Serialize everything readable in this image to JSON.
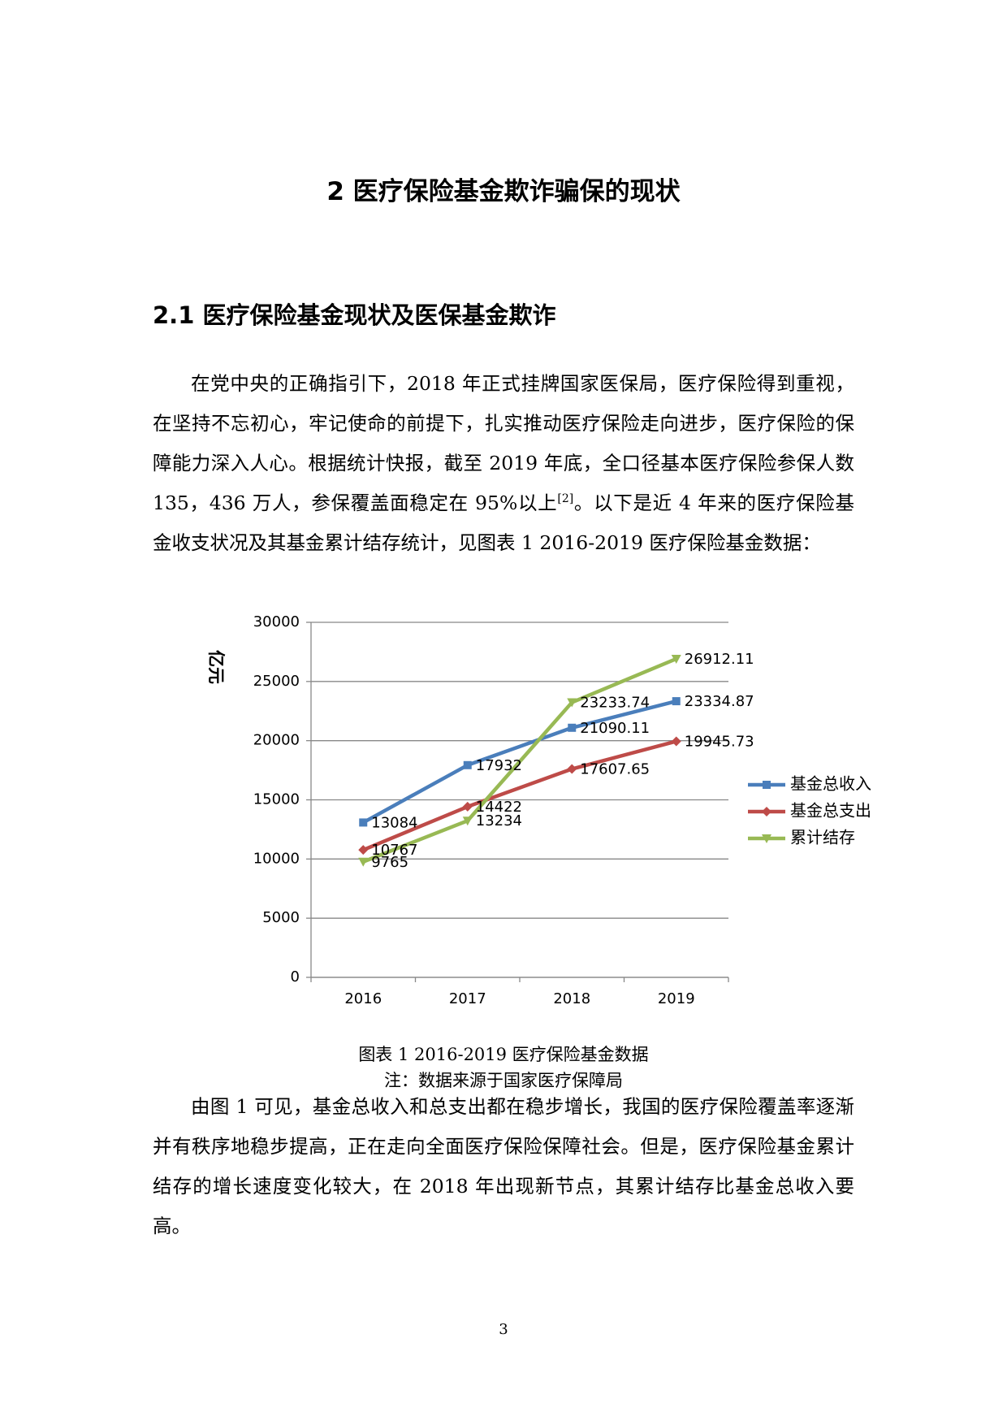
{
  "heading": "2 医疗保险基金欺诈骗保的现状",
  "section_heading": "2.1  医疗保险基金现状及医保基金欺诈",
  "paragraph_1": {
    "before": "在党中央的正确指引下，2018 年正式挂牌国家医保局，医疗保险得到重视，在坚持不忘初心，牢记使命的前提下，扎实推动医疗保险走向进步，医疗保险的保障能力深入人心。根据统计快报，截至 2019 年底，全口径基本医疗保险参保人数 135，436 万人，参保覆盖面稳定在 95%以上",
    "citation": "[2]",
    "after": "。以下是近 4 年来的医疗保险基金收支状况及其基金累计结存统计，见图表 1   2016-2019 医疗保险基金数据："
  },
  "chart_data": {
    "type": "line",
    "y_label": "亿元",
    "categories": [
      "2016",
      "2017",
      "2018",
      "2019"
    ],
    "series": [
      {
        "name": "基金总收入",
        "color": "#4a7ebb",
        "marker": "square",
        "values": [
          13084,
          17932,
          21090.11,
          23334.87
        ]
      },
      {
        "name": "基金总支出",
        "color": "#be4b48",
        "marker": "diamond",
        "values": [
          10767,
          14422,
          17607.65,
          19945.73
        ]
      },
      {
        "name": "累计结存",
        "color": "#98b954",
        "marker": "triangle-down",
        "values": [
          9765,
          13234,
          23233.74,
          26912.11
        ]
      }
    ],
    "ylim": [
      0,
      30000
    ],
    "yticks": [
      0,
      5000,
      10000,
      15000,
      20000,
      25000,
      30000
    ],
    "grid": true,
    "legend": "right"
  },
  "caption": "图表 1   2016-2019 医疗保险基金数据",
  "note": "注：数据来源于国家医疗保障局",
  "paragraph_2": "由图 1 可见，基金总收入和总支出都在稳步增长，我国的医疗保险覆盖率逐渐并有秩序地稳步提高，正在走向全面医疗保险保障社会。但是，医疗保险基金累计结存的增长速度变化较大，在 2018 年出现新节点，其累计结存比基金总收入要高。",
  "page_number": "3"
}
